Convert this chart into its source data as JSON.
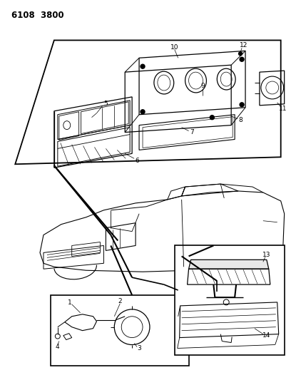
{
  "title": "6108  3800",
  "bg_color": "#ffffff",
  "fig_width": 4.08,
  "fig_height": 5.33,
  "dpi": 100,
  "text_color": "#000000",
  "line_color": "#000000"
}
